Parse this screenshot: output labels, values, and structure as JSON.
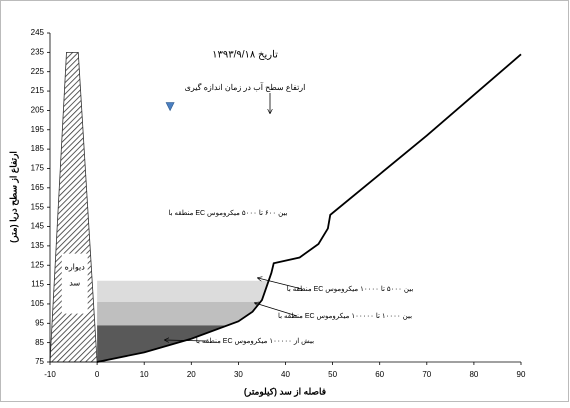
{
  "chart_data": {
    "type": "line",
    "title": "تاریخ ۱۳۹۳/۹/۱۸",
    "water_label": "ارتفاع سطح آب در زمان اندازه گیری",
    "x_label": "فاصله از سد (کیلومتر)",
    "y_label": "ارتفاع از سطح دریا (متر)",
    "dam_label": [
      "دیواره",
      "سد"
    ],
    "x": [
      0,
      10,
      20,
      30,
      33,
      35,
      37,
      37.5,
      43,
      47,
      49,
      49.5,
      60,
      70,
      80,
      90
    ],
    "values": [
      75,
      80,
      87,
      96,
      101,
      107,
      121,
      126,
      129,
      136,
      144,
      151,
      172,
      192,
      213,
      234
    ],
    "color": "#000000",
    "top_zone_label": "منطقه با EC بین ۶۰۰ تا ۵۰۰۰ میکروموس",
    "zones": [
      {
        "label": "منطقه با EC بیش از ۱۰۰۰۰۰ میکروموس",
        "top": 94,
        "color": "#595959"
      },
      {
        "label": "منطقه با EC بین ۱۰۰۰۰ تا ۱۰۰۰۰۰ میکروموس",
        "top": 106,
        "color": "#bfbfbf"
      },
      {
        "label": "منطقه با EC بین ۵۰۰۰ تا ۱۰۰۰۰ میکروموس",
        "top": 117,
        "color": "#dcdcdc"
      }
    ],
    "dam": {
      "crest_x": [
        -6.5,
        -4
      ],
      "crest_y": 235,
      "base_x": [
        -10,
        0
      ]
    },
    "water_level": {
      "x": 15.5,
      "y": 207
    },
    "xlim": [
      -10,
      90
    ],
    "xticks": [
      -10,
      0,
      10,
      20,
      30,
      40,
      50,
      60,
      70,
      80,
      90
    ],
    "ylim": [
      75,
      245
    ],
    "yticks": [
      75,
      85,
      95,
      105,
      115,
      125,
      135,
      145,
      155,
      165,
      175,
      185,
      195,
      205,
      215,
      225,
      235,
      245
    ]
  }
}
